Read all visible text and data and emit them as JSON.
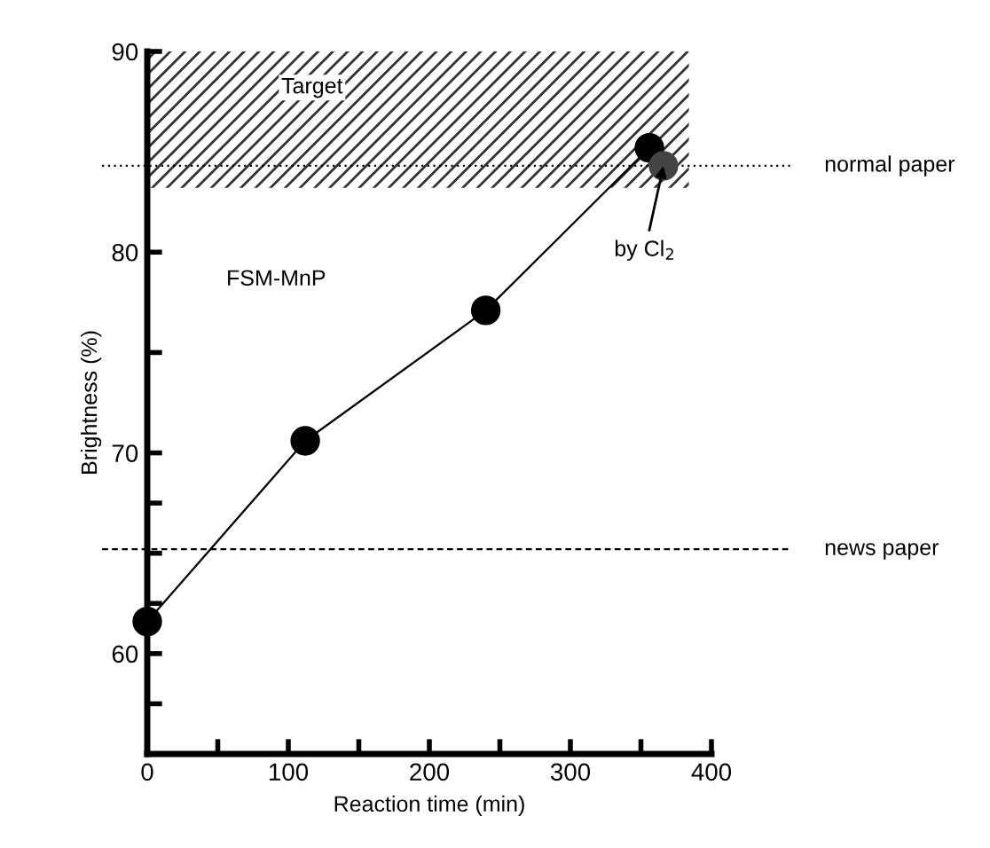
{
  "chart_data": {
    "type": "line",
    "xlabel": "Reaction time (min)",
    "ylabel": "Brightness (%)",
    "xlim": [
      0,
      400
    ],
    "ylim": [
      55,
      90
    ],
    "xticks": [
      0,
      {
        "value": 50,
        "label": null
      },
      100,
      {
        "value": 150,
        "label": null
      },
      200,
      {
        "value": 250,
        "label": null
      },
      300,
      {
        "value": 350,
        "label": null
      },
      400
    ],
    "yticks": [
      {
        "value": 57.5,
        "label": null
      },
      60,
      {
        "value": 62.5,
        "label": null
      },
      {
        "value": 65,
        "label": null
      },
      {
        "value": 67.5,
        "label": null
      },
      70,
      {
        "value": 75,
        "label": null
      },
      80,
      90
    ],
    "series": [
      {
        "color": "#000000",
        "x": [
          0,
          112,
          240,
          356
        ],
        "values": [
          61.6,
          70.6,
          77.1,
          85.2
        ]
      },
      {
        "type": "scatter",
        "color": "#444444",
        "x": [
          366
        ],
        "values": [
          84.3
        ]
      }
    ],
    "marker": "circle",
    "grid": false,
    "legend": false,
    "ref_lines": [
      {
        "axis": "y",
        "value": 84.3,
        "label": "normal paper",
        "line_style": "dotted"
      },
      {
        "axis": "y",
        "value": 65.2,
        "label": "news paper",
        "line_style": "dashed"
      }
    ],
    "bands": [
      {
        "axis": "y",
        "from": 83.2,
        "to": 90,
        "label": "Target"
      }
    ],
    "annotations": [
      "FSM-MnP",
      {
        "text": "by Cl$_{2}$",
        "x": 366,
        "y": 84.3
      }
    ]
  }
}
